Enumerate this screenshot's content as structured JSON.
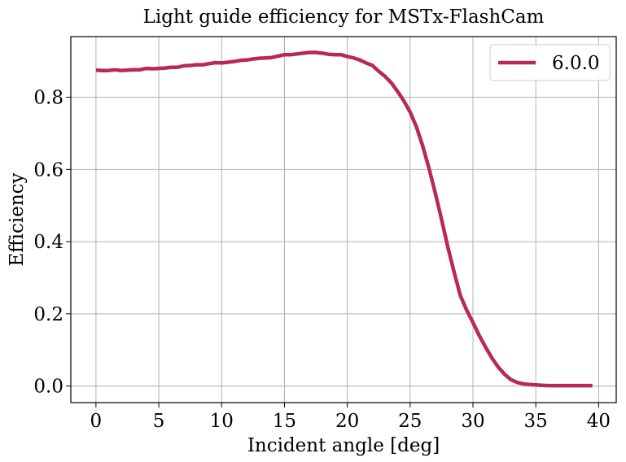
{
  "chart_data": {
    "type": "line",
    "title": "Light guide efficiency for MSTx-FlashCam",
    "xlabel": "Incident angle [deg]",
    "ylabel": "Efficiency",
    "xlim": [
      -2.0,
      41.4
    ],
    "ylim": [
      -0.046,
      0.968
    ],
    "xticks": [
      0,
      5,
      10,
      15,
      20,
      25,
      30,
      35,
      40
    ],
    "xtick_labels": [
      "0",
      "5",
      "10",
      "15",
      "20",
      "25",
      "30",
      "35",
      "40"
    ],
    "yticks": [
      0.0,
      0.2,
      0.4,
      0.6,
      0.8
    ],
    "ytick_labels": [
      "0.0",
      "0.2",
      "0.4",
      "0.6",
      "0.8"
    ],
    "grid": true,
    "legend_position": "top-right",
    "series": [
      {
        "name": "6.0.0",
        "color": "#b8285a",
        "x": [
          0,
          0.5,
          1,
          1.5,
          2,
          2.5,
          3,
          3.5,
          4,
          4.5,
          5,
          5.5,
          6,
          6.5,
          7,
          7.5,
          8,
          8.5,
          9,
          9.5,
          10,
          10.5,
          11,
          11.5,
          12,
          12.5,
          13,
          13.5,
          14,
          14.5,
          15,
          15.5,
          16,
          16.5,
          17,
          17.5,
          18,
          18.5,
          19,
          19.5,
          20,
          20.5,
          21,
          21.5,
          22,
          22.5,
          23,
          23.5,
          24,
          24.5,
          25,
          25.5,
          26,
          26.5,
          27,
          27.5,
          28,
          28.5,
          29,
          29.5,
          30,
          30.5,
          31,
          31.5,
          32,
          32.5,
          33,
          33.5,
          34,
          34.5,
          35,
          35.5,
          36,
          36.5,
          37,
          37.5,
          38,
          38.5,
          39,
          39.5
        ],
        "y": [
          0.875,
          0.874,
          0.874,
          0.876,
          0.874,
          0.875,
          0.876,
          0.876,
          0.88,
          0.879,
          0.88,
          0.881,
          0.883,
          0.883,
          0.887,
          0.888,
          0.89,
          0.89,
          0.893,
          0.896,
          0.895,
          0.897,
          0.899,
          0.902,
          0.903,
          0.906,
          0.908,
          0.909,
          0.91,
          0.914,
          0.918,
          0.918,
          0.92,
          0.922,
          0.924,
          0.924,
          0.922,
          0.919,
          0.918,
          0.918,
          0.913,
          0.909,
          0.903,
          0.895,
          0.888,
          0.872,
          0.858,
          0.84,
          0.816,
          0.79,
          0.759,
          0.718,
          0.665,
          0.603,
          0.535,
          0.462,
          0.385,
          0.315,
          0.25,
          0.21,
          0.176,
          0.14,
          0.108,
          0.078,
          0.053,
          0.033,
          0.018,
          0.01,
          0.006,
          0.004,
          0.003,
          0.002,
          0.001,
          0.001,
          0.001,
          0.001,
          0.001,
          0.001,
          0.001,
          0.001
        ]
      }
    ]
  }
}
